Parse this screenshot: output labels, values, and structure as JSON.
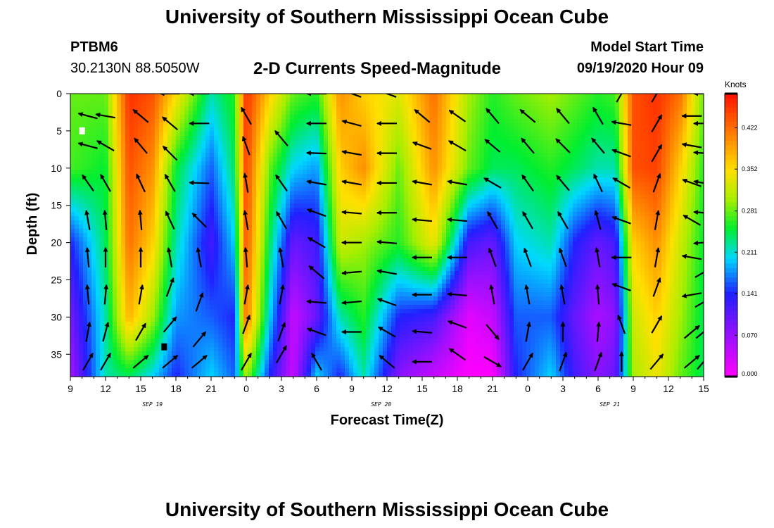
{
  "header": {
    "title": "University of Southern Mississippi Ocean Cube",
    "station_id": "PTBM6",
    "station_coords": "30.2130N 88.5050W",
    "chart_title": "2-D Currents Speed-Magnitude",
    "start_label": "Model Start Time",
    "start_value": "09/19/2020 Hour 09"
  },
  "footer": {
    "title": "University of Southern Mississippi Ocean Cube"
  },
  "chart_data": {
    "type": "heatmap",
    "title": "2-D Currents Speed-Magnitude",
    "xlabel": "Forecast Time(Z)",
    "ylabel": "Depth (ft)",
    "x_tick_labels": [
      "9",
      "12",
      "15",
      "18",
      "21",
      "0",
      "3",
      "6",
      "9",
      "12",
      "15",
      "18",
      "21",
      "0",
      "3",
      "6",
      "9",
      "12",
      "15"
    ],
    "x_hours": [
      0,
      3,
      6,
      9,
      12,
      15,
      18,
      21,
      24,
      27,
      30,
      33,
      36,
      39,
      42,
      45,
      48,
      51,
      54
    ],
    "x_date_labels": [
      {
        "text": "SEP 19",
        "hour": 7
      },
      {
        "text": "SEP 20",
        "hour": 26.5
      },
      {
        "text": "SEP 21",
        "hour": 46
      }
    ],
    "y_ticks": [
      0,
      5,
      10,
      15,
      20,
      25,
      30,
      35
    ],
    "ylim": [
      0,
      38
    ],
    "colorbar": {
      "unit": "Knots",
      "ticks": [
        "0.000",
        "0.070",
        "0.141",
        "0.211",
        "0.281",
        "0.352",
        "0.422"
      ],
      "tick_values": [
        0.0,
        0.07,
        0.141,
        0.211,
        0.281,
        0.352,
        0.422
      ],
      "range": [
        0,
        0.48
      ]
    },
    "color_stops": [
      {
        "v": 0.0,
        "c": "#ff00ff"
      },
      {
        "v": 0.07,
        "c": "#9a10ff"
      },
      {
        "v": 0.14,
        "c": "#2020ff"
      },
      {
        "v": 0.2,
        "c": "#00d8ff"
      },
      {
        "v": 0.25,
        "c": "#00ee30"
      },
      {
        "v": 0.3,
        "c": "#a8ee00"
      },
      {
        "v": 0.35,
        "c": "#ffe000"
      },
      {
        "v": 0.41,
        "c": "#ff8000"
      },
      {
        "v": 0.48,
        "c": "#ff1000"
      }
    ],
    "column_profiles": [
      {
        "hour": 0,
        "depths": [
          0,
          10,
          20,
          30,
          38
        ],
        "speeds": [
          0.28,
          0.27,
          0.14,
          0.09,
          0.06
        ]
      },
      {
        "hour": 3,
        "depths": [
          0,
          10,
          20,
          30,
          38
        ],
        "speeds": [
          0.28,
          0.25,
          0.24,
          0.22,
          0.22
        ]
      },
      {
        "hour": 5,
        "depths": [
          0,
          10,
          20,
          30,
          38
        ],
        "speeds": [
          0.46,
          0.44,
          0.42,
          0.38,
          0.24
        ]
      },
      {
        "hour": 7,
        "depths": [
          0,
          10,
          20,
          30,
          38
        ],
        "speeds": [
          0.44,
          0.4,
          0.36,
          0.3,
          0.2
        ]
      },
      {
        "hour": 9,
        "depths": [
          0,
          10,
          20,
          30,
          38
        ],
        "speeds": [
          0.35,
          0.25,
          0.22,
          0.18,
          0.14
        ]
      },
      {
        "hour": 12,
        "depths": [
          0,
          10,
          20,
          30,
          38
        ],
        "speeds": [
          0.22,
          0.16,
          0.12,
          0.16,
          0.2
        ]
      },
      {
        "hour": 14,
        "depths": [
          0,
          10,
          20,
          30,
          38
        ],
        "speeds": [
          0.26,
          0.24,
          0.2,
          0.14,
          0.16
        ]
      },
      {
        "hour": 15,
        "depths": [
          0,
          10,
          20,
          30,
          38
        ],
        "speeds": [
          0.46,
          0.45,
          0.44,
          0.42,
          0.3
        ]
      },
      {
        "hour": 17,
        "depths": [
          0,
          10,
          20,
          30,
          38
        ],
        "speeds": [
          0.36,
          0.28,
          0.24,
          0.2,
          0.14
        ]
      },
      {
        "hour": 19,
        "depths": [
          0,
          10,
          20,
          30,
          38
        ],
        "speeds": [
          0.28,
          0.2,
          0.1,
          0.04,
          0.04
        ]
      },
      {
        "hour": 21,
        "depths": [
          0,
          10,
          20,
          30,
          38
        ],
        "speeds": [
          0.26,
          0.18,
          0.12,
          0.1,
          0.2
        ]
      },
      {
        "hour": 23,
        "depths": [
          0,
          10,
          20,
          30,
          38
        ],
        "speeds": [
          0.4,
          0.36,
          0.32,
          0.22,
          0.14
        ]
      },
      {
        "hour": 25,
        "depths": [
          0,
          10,
          20,
          30,
          38
        ],
        "speeds": [
          0.36,
          0.4,
          0.3,
          0.26,
          0.22
        ]
      },
      {
        "hour": 28,
        "depths": [
          0,
          10,
          20,
          30,
          38
        ],
        "speeds": [
          0.33,
          0.28,
          0.26,
          0.14,
          0.08
        ]
      },
      {
        "hour": 31,
        "depths": [
          0,
          10,
          20,
          30,
          38
        ],
        "speeds": [
          0.42,
          0.4,
          0.34,
          0.12,
          0.04
        ]
      },
      {
        "hour": 34,
        "depths": [
          0,
          10,
          20,
          30,
          38
        ],
        "speeds": [
          0.3,
          0.28,
          0.12,
          0.02,
          0.0
        ]
      },
      {
        "hour": 36,
        "depths": [
          0,
          10,
          20,
          30,
          38
        ],
        "speeds": [
          0.26,
          0.24,
          0.1,
          0.04,
          0.0
        ]
      },
      {
        "hour": 38,
        "depths": [
          0,
          10,
          20,
          30,
          38
        ],
        "speeds": [
          0.28,
          0.24,
          0.2,
          0.16,
          0.14
        ]
      },
      {
        "hour": 41,
        "depths": [
          0,
          10,
          20,
          30,
          38
        ],
        "speeds": [
          0.3,
          0.26,
          0.22,
          0.16,
          0.2
        ]
      },
      {
        "hour": 43,
        "depths": [
          0,
          10,
          20,
          30,
          38
        ],
        "speeds": [
          0.28,
          0.24,
          0.14,
          0.1,
          0.12
        ]
      },
      {
        "hour": 45,
        "depths": [
          0,
          10,
          20,
          30,
          38
        ],
        "speeds": [
          0.26,
          0.22,
          0.1,
          0.06,
          0.08
        ]
      },
      {
        "hour": 46.5,
        "depths": [
          0,
          10,
          20,
          30,
          38
        ],
        "speeds": [
          0.27,
          0.22,
          0.12,
          0.08,
          0.1
        ]
      },
      {
        "hour": 48,
        "depths": [
          0,
          10,
          20,
          30,
          38
        ],
        "speeds": [
          0.44,
          0.44,
          0.36,
          0.32,
          0.3
        ]
      },
      {
        "hour": 50,
        "depths": [
          0,
          10,
          20,
          30,
          38
        ],
        "speeds": [
          0.46,
          0.45,
          0.4,
          0.36,
          0.34
        ]
      },
      {
        "hour": 52,
        "depths": [
          0,
          10,
          20,
          30,
          38
        ],
        "speeds": [
          0.42,
          0.36,
          0.32,
          0.3,
          0.28
        ]
      },
      {
        "hour": 54,
        "depths": [
          0,
          10,
          20,
          30,
          38
        ],
        "speeds": [
          0.28,
          0.26,
          0.25,
          0.24,
          0.24
        ]
      }
    ],
    "vectors": [
      {
        "hour": 1.5,
        "depths": [
          3,
          7,
          12,
          17,
          22,
          27,
          32,
          36
        ],
        "angles": [
          165,
          165,
          125,
          100,
          95,
          95,
          80,
          60
        ]
      },
      {
        "hour": 3,
        "depths": [
          3,
          7,
          12,
          17,
          22,
          27,
          32,
          36
        ],
        "angles": [
          170,
          150,
          120,
          95,
          90,
          85,
          75,
          60
        ]
      },
      {
        "hour": 6,
        "depths": [
          3,
          7,
          12,
          17,
          22,
          27,
          32,
          36
        ],
        "angles": [
          140,
          130,
          115,
          95,
          90,
          80,
          60,
          40
        ]
      },
      {
        "hour": 8.5,
        "depths": [
          0,
          4,
          8,
          12,
          17,
          22,
          26,
          31,
          36
        ],
        "angles": [
          180,
          140,
          135,
          120,
          115,
          100,
          70,
          50,
          40
        ]
      },
      {
        "hour": 11,
        "depths": [
          0,
          4,
          12,
          17,
          22,
          28,
          33,
          36
        ],
        "angles": [
          180,
          180,
          178,
          135,
          100,
          70,
          50,
          40
        ]
      },
      {
        "hour": 15,
        "depths": [
          3,
          7,
          12,
          17,
          22,
          27,
          31,
          36
        ],
        "angles": [
          120,
          110,
          100,
          100,
          95,
          80,
          70,
          60
        ]
      },
      {
        "hour": 18,
        "depths": [
          6,
          12,
          17,
          22,
          27,
          32,
          35
        ],
        "angles": [
          130,
          125,
          120,
          100,
          80,
          70,
          60
        ]
      },
      {
        "hour": 21,
        "depths": [
          0,
          4,
          8,
          12,
          16,
          20,
          24,
          28,
          32,
          36
        ],
        "angles": [
          180,
          180,
          178,
          170,
          160,
          150,
          140,
          175,
          160,
          120
        ]
      },
      {
        "hour": 24,
        "depths": [
          0,
          4,
          8,
          12,
          16,
          20,
          24,
          28,
          32
        ],
        "angles": [
          160,
          165,
          170,
          170,
          175,
          180,
          185,
          185,
          180
        ]
      },
      {
        "hour": 27,
        "depths": [
          0,
          4,
          8,
          12,
          16,
          20,
          24,
          28,
          32,
          36
        ],
        "angles": [
          160,
          180,
          180,
          180,
          180,
          175,
          170,
          160,
          150,
          140
        ]
      },
      {
        "hour": 30,
        "depths": [
          3,
          7,
          12,
          17,
          22,
          27,
          32,
          36
        ],
        "angles": [
          140,
          160,
          170,
          175,
          180,
          180,
          175,
          180
        ]
      },
      {
        "hour": 33,
        "depths": [
          3,
          7,
          12,
          17,
          22,
          27,
          31,
          35
        ],
        "angles": [
          145,
          150,
          170,
          175,
          180,
          175,
          160,
          145
        ]
      },
      {
        "hour": 36,
        "depths": [
          3,
          7,
          12,
          17,
          22,
          27,
          32,
          36
        ],
        "angles": [
          130,
          140,
          150,
          120,
          110,
          100,
          -50,
          -30
        ]
      },
      {
        "hour": 39,
        "depths": [
          3,
          7,
          12,
          17,
          22,
          27,
          32,
          36
        ],
        "angles": [
          140,
          130,
          125,
          120,
          110,
          100,
          80,
          60
        ]
      },
      {
        "hour": 42,
        "depths": [
          3,
          7,
          12,
          17,
          22,
          27,
          32,
          36
        ],
        "angles": [
          130,
          135,
          130,
          120,
          110,
          100,
          90,
          70
        ]
      },
      {
        "hour": 45,
        "depths": [
          3,
          7,
          12,
          17,
          22,
          27,
          32,
          36
        ],
        "angles": [
          120,
          130,
          115,
          105,
          100,
          95,
          85,
          70
        ]
      },
      {
        "hour": 47,
        "depths": [
          0,
          4,
          8,
          12,
          17,
          22,
          26,
          31,
          36
        ],
        "angles": [
          60,
          170,
          160,
          150,
          160,
          180,
          160,
          110,
          90
        ]
      },
      {
        "hour": 50,
        "depths": [
          0,
          4,
          8,
          12,
          17,
          22,
          26,
          31,
          36
        ],
        "angles": [
          60,
          60,
          60,
          70,
          80,
          80,
          70,
          60,
          50
        ]
      },
      {
        "hour": 53,
        "depths": [
          3,
          7,
          12,
          17,
          22,
          27,
          32,
          36
        ],
        "angles": [
          180,
          170,
          160,
          150,
          170,
          190,
          40,
          40
        ]
      },
      {
        "hour": 54,
        "depths": [
          0,
          4,
          8,
          12,
          16,
          20,
          24,
          28,
          32,
          36
        ],
        "angles": [
          180,
          180,
          175,
          170,
          175,
          185,
          30,
          30,
          40,
          50
        ]
      }
    ],
    "markers": [
      {
        "hour": 1.0,
        "depth": 5,
        "color": "#ffffff"
      },
      {
        "hour": 8.0,
        "depth": 34,
        "color": "#000000"
      }
    ]
  }
}
